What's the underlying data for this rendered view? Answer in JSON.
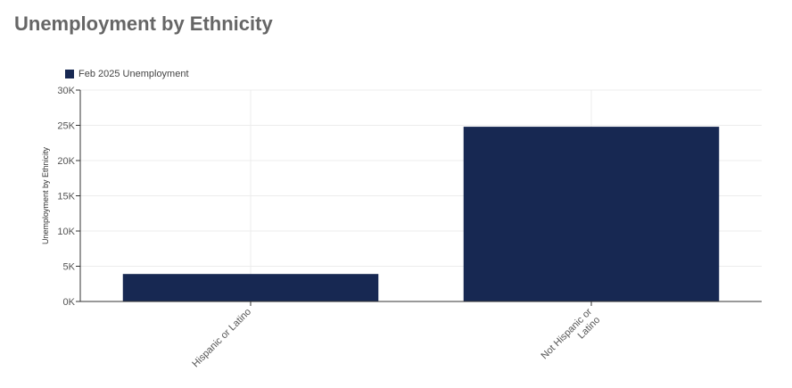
{
  "colors": {
    "series": "#172852",
    "title": "#666666",
    "grid": "#ececec",
    "axis": "#333333"
  },
  "chart_data": {
    "type": "bar",
    "title": "Unemployment by Ethnicity",
    "xlabel": "",
    "ylabel": "Unemployment by Ethnicity",
    "categories": [
      [
        "Hispanic or Latino"
      ],
      [
        "Not Hispanic or",
        "Latino"
      ]
    ],
    "series": [
      {
        "name": "Feb 2025 Unemployment",
        "values": [
          3900,
          24800
        ]
      }
    ],
    "ylim": [
      0,
      30000
    ],
    "yticks": [
      {
        "value": 0,
        "label": "0K"
      },
      {
        "value": 5000,
        "label": "5K"
      },
      {
        "value": 10000,
        "label": "10K"
      },
      {
        "value": 15000,
        "label": "15K"
      },
      {
        "value": 20000,
        "label": "20K"
      },
      {
        "value": 25000,
        "label": "25K"
      },
      {
        "value": 30000,
        "label": "30K"
      }
    ],
    "grid": true,
    "legend_position": "top-left"
  }
}
